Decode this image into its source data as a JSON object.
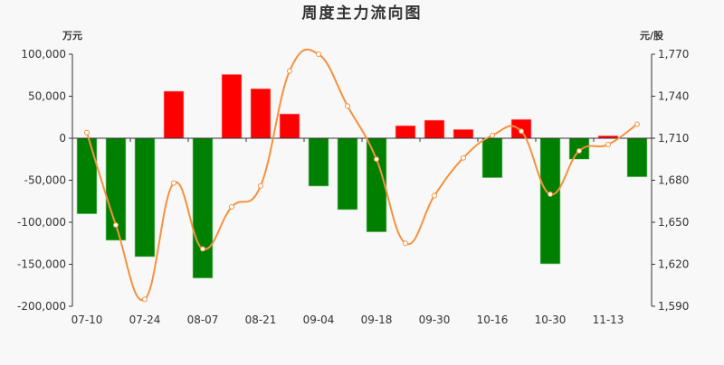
{
  "chart_data": {
    "type": "bar+line",
    "title": "周度主力流向图",
    "left_unit": "万元",
    "right_unit": "元/股",
    "categories": [
      "07-10",
      "",
      "07-24",
      "",
      "08-07",
      "",
      "08-21",
      "",
      "09-04",
      "",
      "09-18",
      "",
      "09-30",
      "",
      "10-16",
      "",
      "10-30",
      "",
      "11-13",
      ""
    ],
    "left_axis": {
      "min": -200000,
      "max": 100000,
      "ticks": [
        100000,
        50000,
        0,
        -50000,
        -100000,
        -150000,
        -200000
      ],
      "tick_labels": [
        "100,000",
        "50,000",
        "0",
        "-50,000",
        "-100,000",
        "-150,000",
        "-200,000"
      ]
    },
    "right_axis": {
      "min": 1590,
      "max": 1770,
      "ticks": [
        1770,
        1740,
        1710,
        1680,
        1650,
        1620,
        1590
      ],
      "tick_labels": [
        "1,770",
        "1,740",
        "1,710",
        "1,680",
        "1,650",
        "1,620",
        "1,590"
      ]
    },
    "series": [
      {
        "type": "bar",
        "axis": "left",
        "values": [
          -90000,
          -121500,
          -141000,
          56000,
          -166500,
          76000,
          59000,
          29000,
          -57000,
          -85000,
          -111500,
          15000,
          21500,
          10500,
          -47000,
          22500,
          -149500,
          -25000,
          3000,
          -46000
        ]
      },
      {
        "type": "line",
        "axis": "right",
        "values": [
          1714,
          1648,
          1595,
          1678,
          1631,
          1661,
          1676,
          1758,
          1770,
          1733,
          1695,
          1635,
          1669,
          1696,
          1712,
          1715,
          1670,
          1701,
          1705.5,
          1720
        ]
      }
    ],
    "colors": {
      "positive": "#ff0000",
      "negative": "#008000",
      "line": "#f5923e",
      "axis": "#333333"
    },
    "grid": false,
    "legend": "none"
  }
}
